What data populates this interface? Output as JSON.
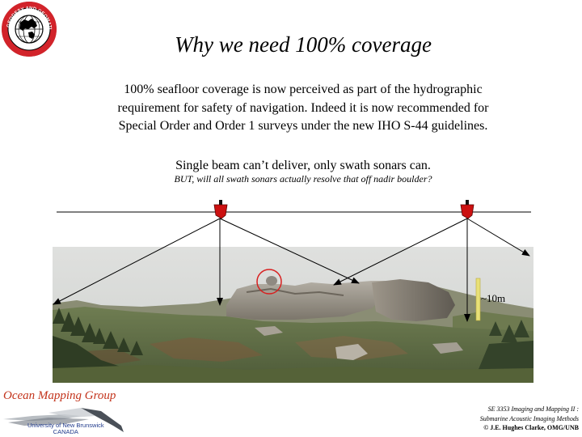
{
  "logo": {
    "ring_text": "GEODESY AND GEOMATICS ENGINEERING",
    "bottom_text": "UNB",
    "accent_color": "#d2232a",
    "icon": "globe-icon"
  },
  "slide": {
    "title": "Why we need 100% coverage",
    "paragraph_lines": [
      "100% seafloor coverage is now perceived as part of the hydrographic",
      "requirement for safety of navigation. Indeed it is now recommended for",
      "Special Order and Order 1 surveys under the new IHO S-44 guidelines."
    ],
    "single_beam": "Single beam can’t deliver, only swath sonars can.",
    "question": "BUT, will all swath sonars actually resolve that off nadir boulder?"
  },
  "figure": {
    "scale_label": "~10m",
    "ship_color": "#cc1111",
    "boulder_circle_color": "#d82020",
    "scale_bar_color": "#e8e077",
    "icons": [
      "ship-icon",
      "ship-icon"
    ]
  },
  "footer": {
    "group_name": "Ocean Mapping Group",
    "university_line1": "University of New Brunswick",
    "university_line2": "CANADA",
    "course": "SE 3353 Imaging and Mapping II :",
    "topic": "Submarine Acoustic Imaging Methods",
    "copyright": "© J.E. Hughes Clarke, OMG/UNB"
  }
}
